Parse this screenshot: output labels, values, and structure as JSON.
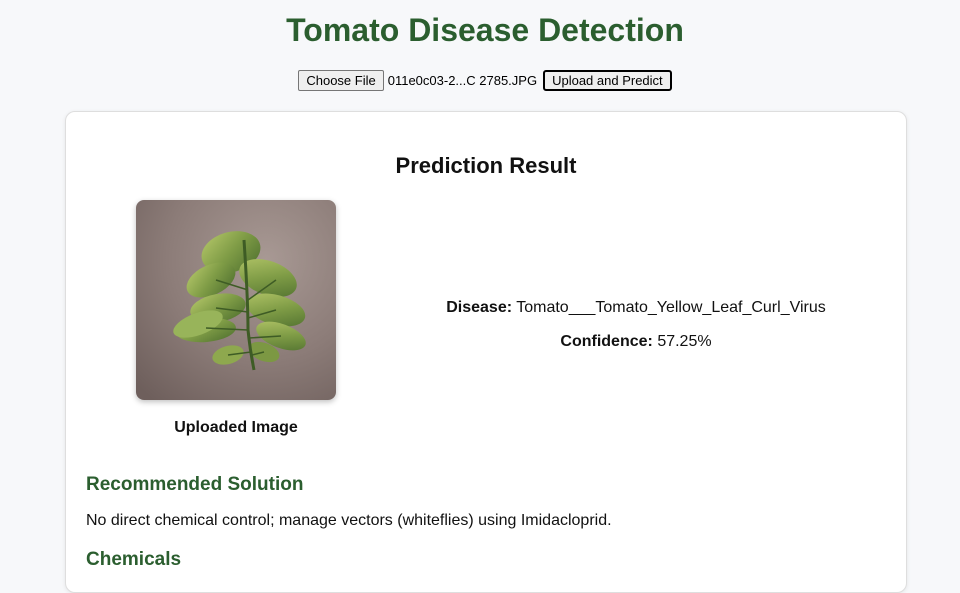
{
  "header": {
    "title": "Tomato Disease Detection"
  },
  "upload": {
    "choose_label": "Choose File",
    "file_name": "011e0c03-2...C 2785.JPG",
    "predict_label": "Upload and Predict"
  },
  "result": {
    "title": "Prediction Result",
    "image_caption": "Uploaded Image",
    "disease_label": "Disease:",
    "disease_value": "Tomato___Tomato_Yellow_Leaf_Curl_Virus",
    "confidence_label": "Confidence:",
    "confidence_value": "57.25%"
  },
  "solution": {
    "heading": "Recommended Solution",
    "text": "No direct chemical control; manage vectors (whiteflies) using Imidacloprid."
  },
  "chemicals": {
    "heading": "Chemicals"
  },
  "colors": {
    "accent_green": "#2b5e2f",
    "background": "#f7f8fa",
    "card": "#ffffff"
  }
}
